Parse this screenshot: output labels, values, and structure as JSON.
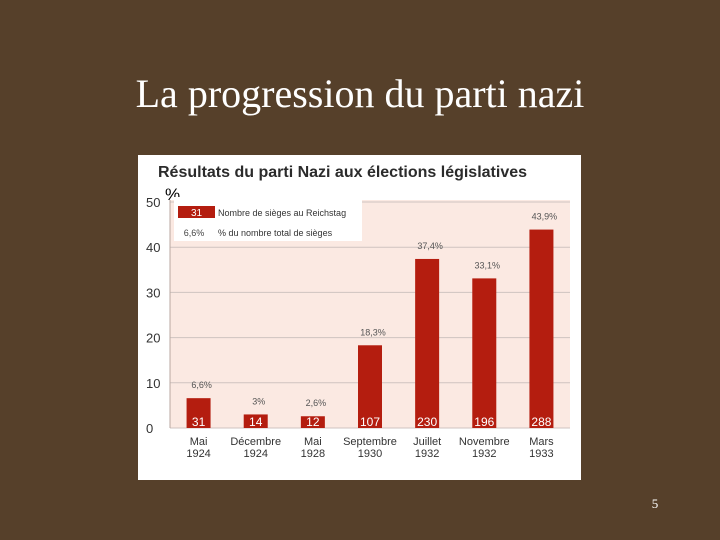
{
  "slide": {
    "title": "La progression du parti nazi",
    "page_number": "5"
  },
  "colors": {
    "background": "#56402a",
    "bar": "#b41d0f",
    "plot_background": "#fbe9e2",
    "title_text": "#2b2b2b"
  },
  "chart_data": {
    "type": "bar",
    "title": "Résultats du parti Nazi aux élections législatives",
    "ylabel": "%",
    "ylim": [
      0,
      50
    ],
    "yticks": [
      "0",
      "10",
      "20",
      "30",
      "40",
      "50"
    ],
    "grid": true,
    "categories": [
      [
        "Mai",
        "1924"
      ],
      [
        "Décembre",
        "1924"
      ],
      [
        "Mai",
        "1928"
      ],
      [
        "Septembre",
        "1930"
      ],
      [
        "Juillet",
        "1932"
      ],
      [
        "Novembre",
        "1932"
      ],
      [
        "Mars",
        "1933"
      ]
    ],
    "values": [
      6.6,
      3,
      2.6,
      18.3,
      37.4,
      33.1,
      43.9
    ],
    "percent_labels": [
      "6,6%",
      "3%",
      "2,6%",
      "18,3%",
      "37,4%",
      "33,1%",
      "43,9%"
    ],
    "seat_labels": [
      "31",
      "14",
      "12",
      "107",
      "230",
      "196",
      "288"
    ],
    "legend": {
      "position": "top-left",
      "seats_sample": "31",
      "seats_text": "Nombre de sièges au Reichstag",
      "percent_sample": "6,6%",
      "percent_text": "% du nombre total de sièges"
    }
  }
}
